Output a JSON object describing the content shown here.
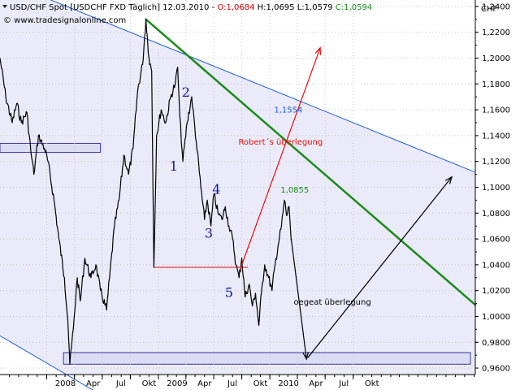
{
  "chart_data": {
    "type": "line",
    "header": {
      "symbol_text": "USD/CHF Spot [USDCHF FXD  Täglich] 12.03.2010 - ",
      "open_label": "O:",
      "open_value": "1,0684",
      "high_text": "H:1,0695",
      "low_text": "L:1,0579",
      "close_label": "C:",
      "close_value": "1,0594",
      "copyright": "© www.tradesignalonline.com"
    },
    "ylabel": "CHF",
    "ylim": [
      0.955,
      1.245
    ],
    "yticks": [
      0.96,
      0.98,
      1.0,
      1.02,
      1.04,
      1.06,
      1.08,
      1.1,
      1.12,
      1.14,
      1.16,
      1.18,
      1.2,
      1.22,
      1.24
    ],
    "ytick_labels": [
      "0,9600",
      "0,9800",
      "1,0000",
      "1,0200",
      "1,0400",
      "1,0600",
      "1,0800",
      "1,1000",
      "1,1200",
      "1,1400",
      "1,1600",
      "1,1800",
      "1,2000",
      "1,2200",
      "1,2400"
    ],
    "xlim": [
      "2007-08-01",
      "2011-11-05"
    ],
    "xticks": [
      {
        "date": "2008-01-01",
        "label": "2008"
      },
      {
        "date": "2008-04-01",
        "label": "Apr"
      },
      {
        "date": "2008-07-01",
        "label": "Jul"
      },
      {
        "date": "2008-10-01",
        "label": "Okt"
      },
      {
        "date": "2009-01-01",
        "label": "2009"
      },
      {
        "date": "2009-04-01",
        "label": "Apr"
      },
      {
        "date": "2009-07-01",
        "label": "Jul"
      },
      {
        "date": "2009-10-01",
        "label": "Okt"
      },
      {
        "date": "2010-01-01",
        "label": "2010"
      },
      {
        "date": "2010-04-01",
        "label": "Apr"
      },
      {
        "date": "2010-07-01",
        "label": "Jul"
      },
      {
        "date": "2010-10-01",
        "label": "Okt"
      }
    ],
    "series": [
      {
        "color": "#000000",
        "points": [
          [
            "2007-08-01",
            1.2
          ],
          [
            "2007-08-20",
            1.17
          ],
          [
            "2007-09-10",
            1.15
          ],
          [
            "2007-09-25",
            1.165
          ],
          [
            "2007-10-10",
            1.15
          ],
          [
            "2007-10-28",
            1.158
          ],
          [
            "2007-11-10",
            1.128
          ],
          [
            "2007-11-20",
            1.11
          ],
          [
            "2007-12-05",
            1.14
          ],
          [
            "2007-12-25",
            1.13
          ],
          [
            "2008-01-05",
            1.12
          ],
          [
            "2008-01-25",
            1.09
          ],
          [
            "2008-02-10",
            1.06
          ],
          [
            "2008-02-28",
            1.03
          ],
          [
            "2008-03-10",
            0.998
          ],
          [
            "2008-03-17",
            0.963
          ],
          [
            "2008-03-28",
            0.99
          ],
          [
            "2008-04-10",
            1.03
          ],
          [
            "2008-04-20",
            1.012
          ],
          [
            "2008-05-05",
            1.045
          ],
          [
            "2008-05-25",
            1.03
          ],
          [
            "2008-06-10",
            1.04
          ],
          [
            "2008-06-25",
            1.02
          ],
          [
            "2008-07-15",
            1.005
          ],
          [
            "2008-07-25",
            1.03
          ],
          [
            "2008-08-10",
            1.07
          ],
          [
            "2008-08-25",
            1.09
          ],
          [
            "2008-09-10",
            1.125
          ],
          [
            "2008-09-25",
            1.11
          ],
          [
            "2008-10-10",
            1.13
          ],
          [
            "2008-10-25",
            1.175
          ],
          [
            "2008-11-10",
            1.195
          ],
          [
            "2008-11-21",
            1.23
          ],
          [
            "2008-12-01",
            1.2
          ],
          [
            "2008-12-10",
            1.19
          ],
          [
            "2008-12-17",
            1.038
          ],
          [
            "2008-12-26",
            1.14
          ],
          [
            "2009-01-10",
            1.16
          ],
          [
            "2009-01-25",
            1.15
          ],
          [
            "2009-02-10",
            1.17
          ],
          [
            "2009-02-25",
            1.18
          ],
          [
            "2009-03-05",
            1.193
          ],
          [
            "2009-03-12",
            1.155
          ],
          [
            "2009-03-22",
            1.12
          ],
          [
            "2009-04-05",
            1.15
          ],
          [
            "2009-04-20",
            1.17
          ],
          [
            "2009-05-05",
            1.135
          ],
          [
            "2009-05-20",
            1.1
          ],
          [
            "2009-06-01",
            1.075
          ],
          [
            "2009-06-10",
            1.09
          ],
          [
            "2009-06-22",
            1.07
          ],
          [
            "2009-07-02",
            1.095
          ],
          [
            "2009-07-15",
            1.08
          ],
          [
            "2009-07-28",
            1.075
          ],
          [
            "2009-08-08",
            1.085
          ],
          [
            "2009-08-20",
            1.07
          ],
          [
            "2009-09-01",
            1.06
          ],
          [
            "2009-09-12",
            1.04
          ],
          [
            "2009-09-22",
            1.03
          ],
          [
            "2009-10-01",
            1.045
          ],
          [
            "2009-10-12",
            1.015
          ],
          [
            "2009-10-25",
            1.025
          ],
          [
            "2009-11-05",
            1.008
          ],
          [
            "2009-11-15",
            1.018
          ],
          [
            "2009-11-26",
            0.993
          ],
          [
            "2009-12-05",
            1.02
          ],
          [
            "2009-12-15",
            1.04
          ],
          [
            "2009-12-28",
            1.03
          ],
          [
            "2010-01-08",
            1.02
          ],
          [
            "2010-01-18",
            1.04
          ],
          [
            "2010-01-28",
            1.055
          ],
          [
            "2010-02-08",
            1.07
          ],
          [
            "2010-02-18",
            1.09
          ],
          [
            "2010-02-25",
            1.078
          ],
          [
            "2010-03-05",
            1.085
          ],
          [
            "2010-03-12",
            1.059
          ]
        ]
      }
    ],
    "trendlines": [
      {
        "color": "#2060d8",
        "width": 1,
        "points": [
          [
            "2007-09-01",
            1.258
          ],
          [
            "2011-11-01",
            1.112
          ]
        ]
      },
      {
        "color": "#2060d8",
        "width": 1,
        "points": [
          [
            "2007-08-01",
            0.985
          ],
          [
            "2008-06-15",
            0.941
          ]
        ]
      },
      {
        "color": "#1a8c1a",
        "width": 2.5,
        "points": [
          [
            "2008-11-21",
            1.23
          ],
          [
            "2011-11-05",
            1.009
          ]
        ]
      },
      {
        "color": "#e01010",
        "width": 1,
        "points": [
          [
            "2008-12-17",
            1.038
          ],
          [
            "2009-10-20",
            1.038
          ]
        ]
      }
    ],
    "shaded_channel": {
      "color": "#eaeaf8",
      "top": [
        [
          "2007-09-01",
          1.258
        ],
        [
          "2011-11-05",
          1.112
        ]
      ],
      "bottom": [
        [
          "2007-08-01",
          0.985
        ],
        [
          "2008-06-15",
          0.941
        ]
      ]
    },
    "zones": [
      {
        "x0": "2007-08-01",
        "x1": "2008-06-25",
        "y0": 1.127,
        "y1": 1.134,
        "fill": "#dcdcf4",
        "stroke": "#3a3a9a"
      },
      {
        "x0": "2008-02-25",
        "x1": "2011-10-20",
        "y0": 0.963,
        "y1": 0.972,
        "fill": "#dcdcf4",
        "stroke": "#3a3a9a"
      }
    ],
    "arrows": [
      {
        "color": "#e01010",
        "from": [
          "2009-09-25",
          1.036
        ],
        "to": [
          "2010-06-15",
          1.208
        ]
      },
      {
        "color": "#000000",
        "from": [
          "2010-03-12",
          1.06
        ],
        "to": [
          "2010-05-01",
          0.967
        ]
      },
      {
        "color": "#000000",
        "from": [
          "2010-05-05",
          0.968
        ],
        "to": [
          "2011-08-20",
          1.108
        ]
      }
    ],
    "wave_labels": [
      {
        "text": "1",
        "x": "2009-02-20",
        "y": 1.113
      },
      {
        "text": "2",
        "x": "2009-04-01",
        "y": 1.17
      },
      {
        "text": "3",
        "x": "2009-06-15",
        "y": 1.061
      },
      {
        "text": "4",
        "x": "2009-07-10",
        "y": 1.095
      },
      {
        "text": "5",
        "x": "2009-08-20",
        "y": 1.015
      }
    ],
    "annotations": [
      {
        "text": "1,1554",
        "x": "2010-01-15",
        "y": 1.158,
        "color": "#2060d8"
      },
      {
        "text": "Robert´s überlegung",
        "x": "2009-09-20",
        "y": 1.133,
        "color": "#e01010"
      },
      {
        "text": "1,0855",
        "x": "2010-02-05",
        "y": 1.096,
        "color": "#1a8c1a"
      },
      {
        "text": "oegeat überlegung",
        "x": "2010-03-20",
        "y": 1.009,
        "color": "#000000"
      }
    ]
  }
}
